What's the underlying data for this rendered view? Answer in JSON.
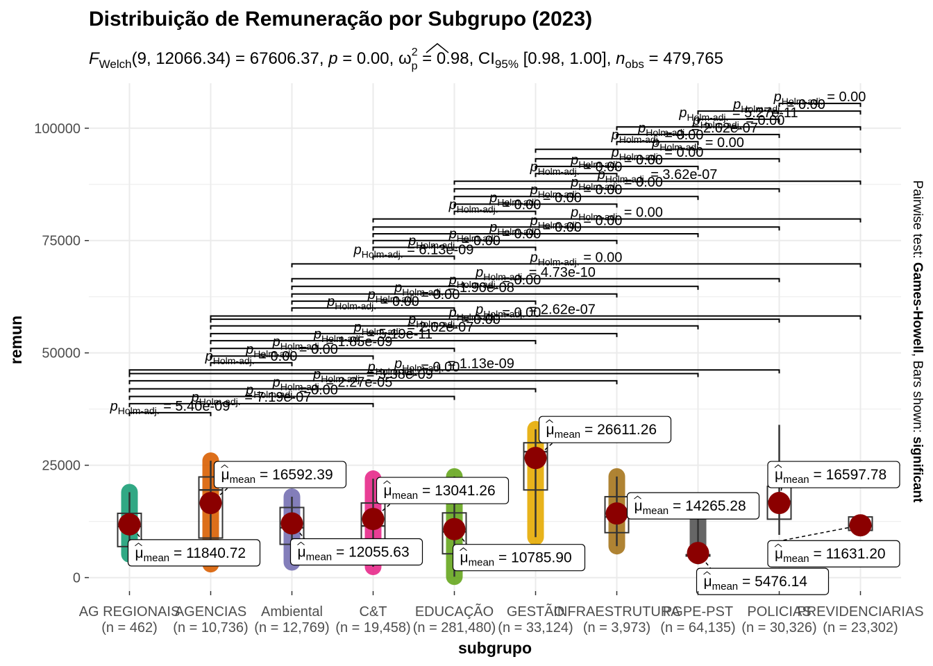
{
  "chart_data": {
    "type": "box",
    "title": "Distribuição de Remuneração por Subgrupo (2023)",
    "subtitle": {
      "stat_symbol": "F",
      "stat_sub": "Welch",
      "dfs": "(9, 12066.34)",
      "stat_value": " = 67606.37, ",
      "p_symbol": "p",
      "p_value": " = 0.00, ",
      "effect_symbol": "ω",
      "effect_sup": "2",
      "effect_sub": "p",
      "effect_value": " = 0.98, CI",
      "ci_sub": "95%",
      "ci_value": " [0.98, 1.00], ",
      "n_symbol": "n",
      "n_sub": "obs",
      "n_value": " = 479,765"
    },
    "xlabel": "subgrupo",
    "ylabel": "remun",
    "ylim": [
      -3000,
      110000
    ],
    "yticks": [
      0,
      25000,
      50000,
      75000,
      100000
    ],
    "ytick_labels": [
      "0",
      "25000",
      "50000",
      "75000",
      "100000"
    ],
    "grid": true,
    "side_caption": {
      "prefix": "Pairwise test: ",
      "test": "Games-Howell",
      "middle": ", Bars shown: ",
      "shown": "significant"
    },
    "mean_prefix": "μ",
    "mean_sub": "mean",
    "p_prefix": "p",
    "p_sub": "Holm-adj.",
    "groups": [
      {
        "name": "AG REGIONAIS",
        "n": "(n = 462)",
        "color": "#1B9E77",
        "q1": 6900,
        "median": 11400,
        "q3": 14300,
        "wmin": 5500,
        "wmax": 19000,
        "pmin": 5200,
        "pmax": 19000,
        "mean": 11840.72,
        "mean_label": "11840.72"
      },
      {
        "name": "AGENCIAS",
        "n": "(n = 10,736)",
        "color": "#D95F02",
        "q1": 8800,
        "median": 19500,
        "q3": 22400,
        "wmin": 3000,
        "wmax": 26000,
        "pmin": 3000,
        "pmax": 26000,
        "mean": 16592.39,
        "mean_label": "16592.39"
      },
      {
        "name": "Ambiental",
        "n": "(n = 12,769)",
        "color": "#7570B3",
        "q1": 7400,
        "median": 11100,
        "q3": 15600,
        "wmin": 3400,
        "wmax": 18000,
        "pmin": 3400,
        "pmax": 18000,
        "mean": 12055.63,
        "mean_label": "12055.63"
      },
      {
        "name": "C&T",
        "n": "(n = 19,458)",
        "color": "#E7298A",
        "q1": 7800,
        "median": 11500,
        "q3": 16600,
        "wmin": 2400,
        "wmax": 22000,
        "pmin": 2400,
        "pmax": 22000,
        "mean": 13041.26,
        "mean_label": "13041.26"
      },
      {
        "name": "EDUCAÇÃO",
        "n": "(n = 281,480)",
        "color": "#66A61E",
        "q1": 5300,
        "median": 10200,
        "q3": 14400,
        "wmin": 200,
        "wmax": 22500,
        "pmin": 200,
        "pmax": 22500,
        "mean": 10785.9,
        "mean_label": "10785.90"
      },
      {
        "name": "GESTÃO",
        "n": "(n = 33,124)",
        "color": "#E6AB02",
        "q1": 19500,
        "median": 28000,
        "q3": 30000,
        "wmin": 9000,
        "wmax": 33000,
        "pmin": 9000,
        "pmax": 33000,
        "mean": 26611.26,
        "mean_label": "26611.26"
      },
      {
        "name": "INFRAESTRUTURA",
        "n": "(n = 3,973)",
        "color": "#A6761D",
        "q1": 10000,
        "median": 13500,
        "q3": 18000,
        "wmin": 7000,
        "wmax": 22500,
        "pmin": 7000,
        "pmax": 22500,
        "mean": 14265.28,
        "mean_label": "14265.28"
      },
      {
        "name": "PGPE-PST",
        "n": "(n = 64,135)",
        "color": "#555555",
        "q1": 4900,
        "median": 5000,
        "q3": 5100,
        "wmin": 4800,
        "wmax": 13000,
        "pmin": 4800,
        "pmax": 13000,
        "mean": 5476.14,
        "mean_label": "5476.14"
      },
      {
        "name": "POLICIAS",
        "n": "(n = 30,326)",
        "color": "#1B9E77",
        "q1": 13000,
        "median": 17000,
        "q3": 20300,
        "wmin": 9500,
        "wmax": 34000,
        "pmin": null,
        "pmax": null,
        "mean": 16597.78,
        "mean_label": "16597.78"
      },
      {
        "name": "PREVIDENCIARIAS",
        "n": "(n = 23,302)",
        "color": "#D95F02",
        "q1": 10500,
        "median": 11500,
        "q3": 13500,
        "wmin": 9500,
        "wmax": 14000,
        "pmin": null,
        "pmax": null,
        "mean": 11631.2,
        "mean_label": "11631.20"
      }
    ],
    "mean_label_side": [
      "below",
      "above",
      "below",
      "above",
      "below",
      "above",
      "right",
      "below",
      "above",
      "below"
    ],
    "pairs": [
      {
        "a": 0,
        "b": 1,
        "y": 36700,
        "label": "5.40e-09"
      },
      {
        "a": 0,
        "b": 3,
        "y": 38700,
        "label": "7.19e-07"
      },
      {
        "a": 0,
        "b": 4,
        "y": 40300,
        "label": "0.00"
      },
      {
        "a": 0,
        "b": 5,
        "y": 42000,
        "label": "2.27e-05"
      },
      {
        "a": 0,
        "b": 6,
        "y": 43800,
        "label": "3.38e-09"
      },
      {
        "a": 0,
        "b": 7,
        "y": 45400,
        "label": "0.00"
      },
      {
        "a": 0,
        "b": 8,
        "y": 46200,
        "label": "1.13e-09"
      },
      {
        "a": 1,
        "b": 2,
        "y": 47800,
        "label": "0.00"
      },
      {
        "a": 1,
        "b": 3,
        "y": 49300,
        "label": "0.00"
      },
      {
        "a": 1,
        "b": 4,
        "y": 51000,
        "label": "1.85e-09"
      },
      {
        "a": 1,
        "b": 5,
        "y": 52700,
        "label": "5.19e-11"
      },
      {
        "a": 1,
        "b": 6,
        "y": 54300,
        "label": "2.62e-07"
      },
      {
        "a": 1,
        "b": 7,
        "y": 56000,
        "label": "0.00"
      },
      {
        "a": 1,
        "b": 8,
        "y": 57500,
        "label": "0.00"
      },
      {
        "a": 1,
        "b": 9,
        "y": 58200,
        "label": "2.62e-07"
      },
      {
        "a": 2,
        "b": 4,
        "y": 60000,
        "label": "0.00"
      },
      {
        "a": 2,
        "b": 5,
        "y": 61500,
        "label": "0.00"
      },
      {
        "a": 2,
        "b": 6,
        "y": 63100,
        "label": "1.90e-08"
      },
      {
        "a": 2,
        "b": 7,
        "y": 64800,
        "label": "0.00"
      },
      {
        "a": 2,
        "b": 8,
        "y": 66500,
        "label": "4.73e-10"
      },
      {
        "a": 2,
        "b": 9,
        "y": 69800,
        "label": "0.00"
      },
      {
        "a": 3,
        "b": 4,
        "y": 71500,
        "label": "6.13e-09"
      },
      {
        "a": 3,
        "b": 5,
        "y": 73500,
        "label": "0.00"
      },
      {
        "a": 3,
        "b": 6,
        "y": 75000,
        "label": "0.00"
      },
      {
        "a": 3,
        "b": 7,
        "y": 76500,
        "label": "0.00"
      },
      {
        "a": 3,
        "b": 8,
        "y": 78000,
        "label": "0.00"
      },
      {
        "a": 3,
        "b": 9,
        "y": 79800,
        "label": "0.00"
      },
      {
        "a": 4,
        "b": 5,
        "y": 81500,
        "label": "0.00"
      },
      {
        "a": 4,
        "b": 6,
        "y": 83100,
        "label": "0.00"
      },
      {
        "a": 4,
        "b": 7,
        "y": 84800,
        "label": "0.00"
      },
      {
        "a": 4,
        "b": 8,
        "y": 86500,
        "label": "0.00"
      },
      {
        "a": 4,
        "b": 9,
        "y": 88200,
        "label": "3.62e-07"
      },
      {
        "a": 5,
        "b": 6,
        "y": 89900,
        "label": "0.00"
      },
      {
        "a": 5,
        "b": 7,
        "y": 91500,
        "label": "0.00"
      },
      {
        "a": 5,
        "b": 8,
        "y": 93200,
        "label": "0.00"
      },
      {
        "a": 5,
        "b": 9,
        "y": 95300,
        "label": "0.00"
      },
      {
        "a": 6,
        "b": 7,
        "y": 97000,
        "label": "0.00"
      },
      {
        "a": 6,
        "b": 8,
        "y": 98600,
        "label": "2.62e-07"
      },
      {
        "a": 6,
        "b": 9,
        "y": 100300,
        "label": "0.00"
      },
      {
        "a": 7,
        "b": 8,
        "y": 102000,
        "label": "5.27e-11"
      },
      {
        "a": 7,
        "b": 9,
        "y": 103800,
        "label": "0.00"
      },
      {
        "a": 8,
        "b": 9,
        "y": 105500,
        "label": "0.00"
      }
    ]
  }
}
